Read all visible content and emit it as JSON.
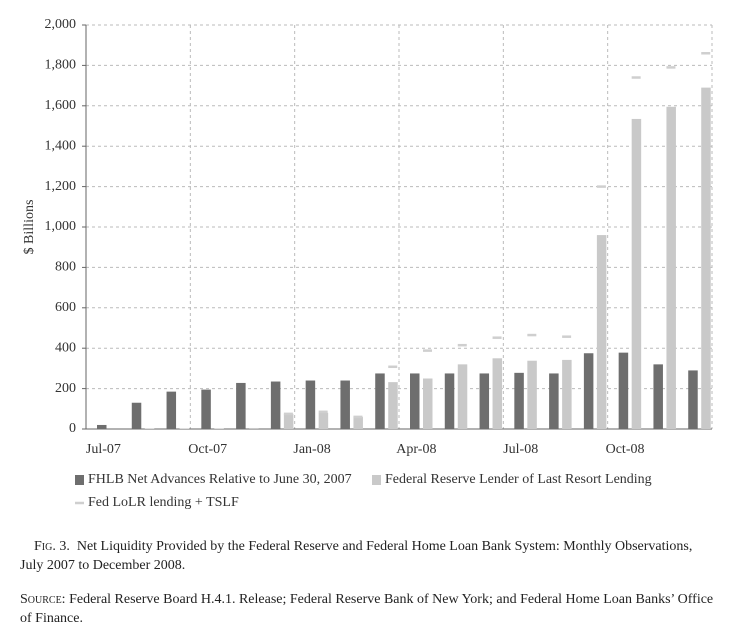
{
  "chart_data": {
    "type": "bar",
    "y_label": "$ Billions",
    "categories": [
      "Jul-07",
      null,
      null,
      "Oct-07",
      null,
      null,
      "Jan-08",
      null,
      null,
      "Apr-08",
      null,
      null,
      "Jul-08",
      null,
      null,
      "Oct-08",
      null,
      null
    ],
    "series": [
      {
        "name": "FHLB Net Advances Relative to June 30, 2007",
        "color": "#6e6e6e",
        "style": "bar",
        "values": [
          20,
          130,
          185,
          195,
          228,
          235,
          240,
          240,
          275,
          275,
          275,
          275,
          278,
          275,
          375,
          378,
          320,
          290
        ]
      },
      {
        "name": "Federal Reserve Lender of Last Resort Lending",
        "color": "#c9c9c9",
        "style": "bar",
        "values": [
          0,
          3,
          3,
          3,
          5,
          75,
          80,
          60,
          232,
          250,
          320,
          350,
          338,
          342,
          960,
          1535,
          1595,
          1690
        ]
      },
      {
        "name": "Fed LoLR lending + TSLF",
        "color": "#cfcfcf",
        "style": "dash",
        "values": [
          null,
          null,
          null,
          null,
          null,
          75,
          85,
          60,
          308,
          388,
          415,
          452,
          465,
          457,
          1200,
          1740,
          1790,
          1860
        ]
      }
    ],
    "ylim": [
      0,
      2000
    ],
    "yticks": [
      0,
      200,
      400,
      600,
      800,
      {
        "value": 1000,
        "label": "1,000"
      },
      {
        "value": 1200,
        "label": "1,200"
      },
      {
        "value": 1400,
        "label": "1,400"
      },
      {
        "value": 1600,
        "label": "1,600"
      },
      {
        "value": 1800,
        "label": "1,800"
      },
      {
        "value": 2000,
        "label": "2,000"
      }
    ],
    "grid": true
  },
  "caption": {
    "label": "Fig. 3.",
    "text": "Net Liquidity Provided by the Federal Reserve and Federal Home Loan Bank System: Monthly Observations, July 2007 to December 2008."
  },
  "source": {
    "label": "Source:",
    "text": "Federal Reserve Board H.4.1. Release; Federal Reserve Bank of New York; and Federal Home Loan Banks’ Office of Finance."
  }
}
